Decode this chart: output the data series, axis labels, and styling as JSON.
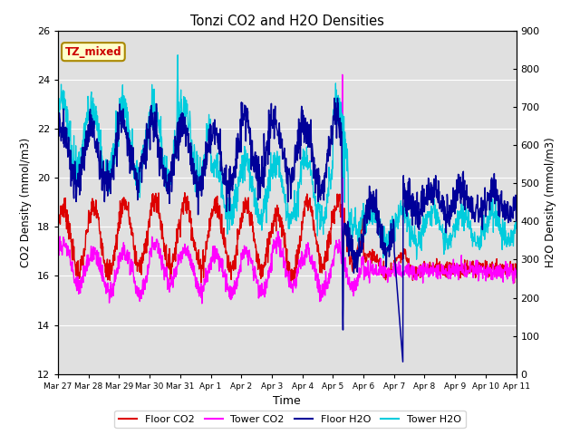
{
  "title": "Tonzi CO2 and H2O Densities",
  "xlabel": "Time",
  "ylabel_left": "CO2 Density (mmol/m3)",
  "ylabel_right": "H2O Density (mmol/m3)",
  "ylim_left": [
    12,
    26
  ],
  "ylim_right": [
    0,
    900
  ],
  "colors": {
    "floor_co2": "#dd0000",
    "tower_co2": "#ff00ff",
    "floor_h2o": "#000099",
    "tower_h2o": "#00ccdd"
  },
  "annotation_text": "TZ_mixed",
  "annotation_color": "#cc0000",
  "annotation_bg": "#ffffcc",
  "annotation_border": "#aa8800",
  "background_inner": "#e0e0e0",
  "background_outer": "#ffffff",
  "xtick_labels": [
    "Mar 27",
    "Mar 28",
    "Mar 29",
    "Mar 30",
    "Mar 31",
    "Apr 1",
    "Apr 2",
    "Apr 3",
    "Apr 4",
    "Apr 5",
    "Apr 6",
    "Apr 7",
    "Apr 8",
    "Apr 9",
    "Apr 10",
    "Apr 11"
  ],
  "xtick_positions": [
    0,
    1,
    2,
    3,
    4,
    5,
    6,
    7,
    8,
    9,
    10,
    11,
    12,
    13,
    14,
    15
  ],
  "yticks_left": [
    12,
    14,
    16,
    18,
    20,
    22,
    24,
    26
  ],
  "yticks_right": [
    0,
    100,
    200,
    300,
    400,
    500,
    600,
    700,
    800,
    900
  ],
  "legend_labels": [
    "Floor CO2",
    "Tower CO2",
    "Floor H2O",
    "Tower H2O"
  ],
  "legend_colors": [
    "#dd0000",
    "#ff00ff",
    "#000099",
    "#00ccdd"
  ]
}
